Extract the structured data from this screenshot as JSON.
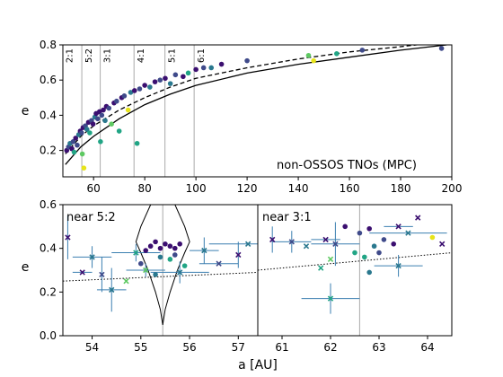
{
  "chart_data": [
    {
      "type": "scatter",
      "title": "",
      "annotation": "non-OSSOS TNOs (MPC)",
      "xlabel": "",
      "ylabel": "e",
      "xlim": [
        48,
        200
      ],
      "ylim": [
        0.05,
        0.8
      ],
      "xticks": [
        "60",
        "80",
        "100",
        "120",
        "140",
        "160",
        "180",
        "200"
      ],
      "yticks": [
        "0.2",
        "0.4",
        "0.6",
        "0.8"
      ],
      "grid": false,
      "resonances": [
        {
          "label": "2:1",
          "a": 47.8
        },
        {
          "label": "5:2",
          "a": 55.4
        },
        {
          "label": "3:1",
          "a": 62.6
        },
        {
          "label": "4:1",
          "a": 75.8
        },
        {
          "label": "5:1",
          "a": 87.9
        },
        {
          "label": "6:1",
          "a": 99.3
        }
      ],
      "curves": [
        {
          "style": "solid",
          "a": [
            49,
            55,
            60,
            70,
            80,
            90,
            100,
            120,
            140,
            160,
            180,
            198
          ],
          "e": [
            0.12,
            0.22,
            0.28,
            0.38,
            0.46,
            0.52,
            0.57,
            0.64,
            0.69,
            0.73,
            0.77,
            0.8
          ]
        },
        {
          "style": "dashed",
          "a": [
            49,
            55,
            60,
            70,
            80,
            90,
            100,
            120,
            140,
            160,
            180,
            198
          ],
          "e": [
            0.18,
            0.28,
            0.34,
            0.43,
            0.5,
            0.56,
            0.61,
            0.67,
            0.72,
            0.76,
            0.79,
            0.82
          ]
        }
      ],
      "points": [
        {
          "a": 49.5,
          "e": 0.2,
          "c": "#3b0f70"
        },
        {
          "a": 50.2,
          "e": 0.22,
          "c": "#3f4a8a"
        },
        {
          "a": 50.8,
          "e": 0.24,
          "c": "#2a788e"
        },
        {
          "a": 51.5,
          "e": 0.21,
          "c": "#3b0f70"
        },
        {
          "a": 52.0,
          "e": 0.25,
          "c": "#3f4a8a"
        },
        {
          "a": 52.4,
          "e": 0.19,
          "c": "#21a585"
        },
        {
          "a": 53.0,
          "e": 0.27,
          "c": "#3b0f70"
        },
        {
          "a": 53.6,
          "e": 0.23,
          "c": "#3f4a8a"
        },
        {
          "a": 54.2,
          "e": 0.29,
          "c": "#2a788e"
        },
        {
          "a": 54.8,
          "e": 0.31,
          "c": "#3b0f70"
        },
        {
          "a": 55.3,
          "e": 0.3,
          "c": "#3f4a8a"
        },
        {
          "a": 55.6,
          "e": 0.18,
          "c": "#5ec962"
        },
        {
          "a": 55.9,
          "e": 0.33,
          "c": "#3b0f70"
        },
        {
          "a": 56.2,
          "e": 0.1,
          "c": "#e7e419"
        },
        {
          "a": 56.8,
          "e": 0.34,
          "c": "#3f4a8a"
        },
        {
          "a": 57.4,
          "e": 0.32,
          "c": "#2a788e"
        },
        {
          "a": 58.0,
          "e": 0.36,
          "c": "#3b0f70"
        },
        {
          "a": 58.5,
          "e": 0.3,
          "c": "#21a585"
        },
        {
          "a": 59.2,
          "e": 0.37,
          "c": "#3f4a8a"
        },
        {
          "a": 59.8,
          "e": 0.35,
          "c": "#3b0f70"
        },
        {
          "a": 60.5,
          "e": 0.39,
          "c": "#2a788e"
        },
        {
          "a": 61.0,
          "e": 0.41,
          "c": "#3b0f70"
        },
        {
          "a": 61.6,
          "e": 0.38,
          "c": "#3f4a8a"
        },
        {
          "a": 62.3,
          "e": 0.42,
          "c": "#3b0f70"
        },
        {
          "a": 62.7,
          "e": 0.25,
          "c": "#21a585"
        },
        {
          "a": 63.2,
          "e": 0.4,
          "c": "#3f4a8a"
        },
        {
          "a": 63.8,
          "e": 0.43,
          "c": "#3b0f70"
        },
        {
          "a": 64.5,
          "e": 0.37,
          "c": "#2a788e"
        },
        {
          "a": 65.0,
          "e": 0.45,
          "c": "#3b0f70"
        },
        {
          "a": 66.0,
          "e": 0.44,
          "c": "#3f4a8a"
        },
        {
          "a": 67.0,
          "e": 0.35,
          "c": "#5ec962"
        },
        {
          "a": 68.0,
          "e": 0.47,
          "c": "#3b0f70"
        },
        {
          "a": 69.0,
          "e": 0.48,
          "c": "#3f4a8a"
        },
        {
          "a": 70.0,
          "e": 0.31,
          "c": "#21a585"
        },
        {
          "a": 71.0,
          "e": 0.5,
          "c": "#3b0f70"
        },
        {
          "a": 72.0,
          "e": 0.51,
          "c": "#3f4a8a"
        },
        {
          "a": 73.5,
          "e": 0.43,
          "c": "#e7e419"
        },
        {
          "a": 74.5,
          "e": 0.53,
          "c": "#2a788e"
        },
        {
          "a": 76.0,
          "e": 0.54,
          "c": "#3b0f70"
        },
        {
          "a": 77.0,
          "e": 0.24,
          "c": "#21a585"
        },
        {
          "a": 78.0,
          "e": 0.55,
          "c": "#3f4a8a"
        },
        {
          "a": 80.0,
          "e": 0.57,
          "c": "#3b0f70"
        },
        {
          "a": 82.0,
          "e": 0.56,
          "c": "#2a788e"
        },
        {
          "a": 84.0,
          "e": 0.59,
          "c": "#3b0f70"
        },
        {
          "a": 86.0,
          "e": 0.6,
          "c": "#3f4a8a"
        },
        {
          "a": 88.0,
          "e": 0.61,
          "c": "#3b0f70"
        },
        {
          "a": 90.0,
          "e": 0.58,
          "c": "#2a788e"
        },
        {
          "a": 92.0,
          "e": 0.63,
          "c": "#3f4a8a"
        },
        {
          "a": 95.0,
          "e": 0.62,
          "c": "#3b0f70"
        },
        {
          "a": 97.0,
          "e": 0.64,
          "c": "#21a585"
        },
        {
          "a": 100.0,
          "e": 0.66,
          "c": "#3b0f70"
        },
        {
          "a": 103.0,
          "e": 0.67,
          "c": "#3f4a8a"
        },
        {
          "a": 106.0,
          "e": 0.67,
          "c": "#2a788e"
        },
        {
          "a": 110.0,
          "e": 0.69,
          "c": "#3b0f70"
        },
        {
          "a": 120.0,
          "e": 0.71,
          "c": "#3f4a8a"
        },
        {
          "a": 144.0,
          "e": 0.74,
          "c": "#5ec962"
        },
        {
          "a": 146.0,
          "e": 0.71,
          "c": "#e7e419"
        },
        {
          "a": 155.0,
          "e": 0.75,
          "c": "#21a585"
        },
        {
          "a": 165.0,
          "e": 0.77,
          "c": "#3f4a8a"
        },
        {
          "a": 196.0,
          "e": 0.78,
          "c": "#3f4a8a"
        }
      ]
    },
    {
      "type": "scatter",
      "title": "",
      "annotation": "near 5:2",
      "xlabel": "",
      "ylabel": "e",
      "xlim": [
        53.4,
        57.4
      ],
      "ylim": [
        0.0,
        0.6
      ],
      "xticks": [
        "54",
        "55",
        "56",
        "57"
      ],
      "yticks": [
        "0.0",
        "0.2",
        "0.4",
        "0.6"
      ],
      "resonance_a": 55.45,
      "trend": {
        "a": [
          53.4,
          57.4
        ],
        "e": [
          0.25,
          0.29
        ]
      },
      "points": [
        {
          "a": 55.3,
          "e": 0.43,
          "c": "#3b0f70",
          "m": "o"
        },
        {
          "a": 55.5,
          "e": 0.42,
          "c": "#3b0f70",
          "m": "o"
        },
        {
          "a": 55.4,
          "e": 0.4,
          "c": "#3b0f70",
          "m": "o"
        },
        {
          "a": 55.6,
          "e": 0.41,
          "c": "#3b0f70",
          "m": "o"
        },
        {
          "a": 55.2,
          "e": 0.41,
          "c": "#3b0f70",
          "m": "o"
        },
        {
          "a": 55.7,
          "e": 0.4,
          "c": "#3b0f70",
          "m": "o"
        },
        {
          "a": 55.1,
          "e": 0.39,
          "c": "#3b0f70",
          "m": "o"
        },
        {
          "a": 55.8,
          "e": 0.42,
          "c": "#3b0f70",
          "m": "o"
        },
        {
          "a": 55.0,
          "e": 0.33,
          "c": "#3f4a8a",
          "m": "o"
        },
        {
          "a": 55.4,
          "e": 0.36,
          "c": "#2a788e",
          "m": "o"
        },
        {
          "a": 55.6,
          "e": 0.35,
          "c": "#21a585",
          "m": "o"
        },
        {
          "a": 55.9,
          "e": 0.32,
          "c": "#21a585",
          "m": "o"
        },
        {
          "a": 55.3,
          "e": 0.28,
          "c": "#2a788e",
          "m": "o"
        },
        {
          "a": 55.7,
          "e": 0.37,
          "c": "#3f4a8a",
          "m": "o"
        },
        {
          "a": 53.5,
          "e": 0.45,
          "c": "#3b0f70",
          "m": "x",
          "ex": 0.0,
          "ey": 0.1
        },
        {
          "a": 53.8,
          "e": 0.29,
          "c": "#3b0f70",
          "m": "x",
          "ex": 0.2,
          "ey": 0.0
        },
        {
          "a": 54.0,
          "e": 0.36,
          "c": "#2a788e",
          "m": "x",
          "ex": 0.4,
          "ey": 0.05
        },
        {
          "a": 54.2,
          "e": 0.28,
          "c": "#3f4a8a",
          "m": "x",
          "ex": 0.0,
          "ey": 0.08
        },
        {
          "a": 54.4,
          "e": 0.21,
          "c": "#2a788e",
          "m": "x",
          "ex": 0.3,
          "ey": 0.1
        },
        {
          "a": 54.7,
          "e": 0.25,
          "c": "#5ec962",
          "m": "x",
          "ex": 0.0,
          "ey": 0.0
        },
        {
          "a": 54.9,
          "e": 0.38,
          "c": "#21a585",
          "m": "x",
          "ex": 0.5,
          "ey": 0.04
        },
        {
          "a": 55.1,
          "e": 0.3,
          "c": "#5ec962",
          "m": "x",
          "ex": 0.4,
          "ey": 0.03
        },
        {
          "a": 55.8,
          "e": 0.29,
          "c": "#2a788e",
          "m": "x",
          "ex": 0.6,
          "ey": 0.05
        },
        {
          "a": 56.3,
          "e": 0.39,
          "c": "#2a788e",
          "m": "x",
          "ex": 0.3,
          "ey": 0.06
        },
        {
          "a": 56.6,
          "e": 0.33,
          "c": "#3f4a8a",
          "m": "x",
          "ex": 0.4,
          "ey": 0.0
        },
        {
          "a": 57.0,
          "e": 0.37,
          "c": "#3b0f70",
          "m": "x",
          "ex": 0.0,
          "ey": 0.06
        },
        {
          "a": 57.2,
          "e": 0.42,
          "c": "#2a788e",
          "m": "x",
          "ex": 0.8,
          "ey": 0.0
        }
      ]
    },
    {
      "type": "scatter",
      "title": "",
      "annotation": "near 3:1",
      "xlabel": "",
      "ylabel": "",
      "xlim": [
        60.5,
        64.5
      ],
      "ylim": [
        0.0,
        0.6
      ],
      "xticks": [
        "61",
        "62",
        "63",
        "64"
      ],
      "yticks": [],
      "resonance_a": 62.6,
      "trend": {
        "a": [
          60.5,
          64.5
        ],
        "e": [
          0.3,
          0.38
        ]
      },
      "points": [
        {
          "a": 62.3,
          "e": 0.5,
          "c": "#3b0f70",
          "m": "o"
        },
        {
          "a": 62.6,
          "e": 0.47,
          "c": "#3f4a8a",
          "m": "o"
        },
        {
          "a": 62.8,
          "e": 0.49,
          "c": "#3b0f70",
          "m": "o"
        },
        {
          "a": 62.9,
          "e": 0.41,
          "c": "#2a788e",
          "m": "o"
        },
        {
          "a": 63.1,
          "e": 0.44,
          "c": "#3f4a8a",
          "m": "o"
        },
        {
          "a": 63.3,
          "e": 0.42,
          "c": "#3b0f70",
          "m": "o"
        },
        {
          "a": 62.5,
          "e": 0.38,
          "c": "#21a585",
          "m": "o"
        },
        {
          "a": 62.7,
          "e": 0.36,
          "c": "#21a585",
          "m": "o"
        },
        {
          "a": 63.0,
          "e": 0.38,
          "c": "#3f4a8a",
          "m": "o"
        },
        {
          "a": 62.8,
          "e": 0.29,
          "c": "#2a788e",
          "m": "o"
        },
        {
          "a": 64.1,
          "e": 0.45,
          "c": "#e7e419",
          "m": "o"
        },
        {
          "a": 60.8,
          "e": 0.44,
          "c": "#3b0f70",
          "m": "x",
          "ex": 0.0,
          "ey": 0.06
        },
        {
          "a": 61.2,
          "e": 0.43,
          "c": "#3f4a8a",
          "m": "x",
          "ex": 0.4,
          "ey": 0.05
        },
        {
          "a": 61.5,
          "e": 0.41,
          "c": "#2a788e",
          "m": "x",
          "ex": 0.0,
          "ey": 0.0
        },
        {
          "a": 61.9,
          "e": 0.44,
          "c": "#3b0f70",
          "m": "x",
          "ex": 0.3,
          "ey": 0.0
        },
        {
          "a": 62.1,
          "e": 0.42,
          "c": "#3f4a8a",
          "m": "x",
          "ex": 0.5,
          "ey": 0.1
        },
        {
          "a": 62.0,
          "e": 0.35,
          "c": "#5ec962",
          "m": "x",
          "ex": 0.0,
          "ey": 0.0
        },
        {
          "a": 61.8,
          "e": 0.31,
          "c": "#21a585",
          "m": "x",
          "ex": 0.0,
          "ey": 0.0
        },
        {
          "a": 62.0,
          "e": 0.17,
          "c": "#21a585",
          "m": "x",
          "ex": 0.6,
          "ey": 0.07
        },
        {
          "a": 63.4,
          "e": 0.5,
          "c": "#3b0f70",
          "m": "x",
          "ex": 0.3,
          "ey": 0.0
        },
        {
          "a": 63.6,
          "e": 0.47,
          "c": "#2a788e",
          "m": "x",
          "ex": 0.8,
          "ey": 0.0
        },
        {
          "a": 63.8,
          "e": 0.54,
          "c": "#3b0f70",
          "m": "x",
          "ex": 0.0,
          "ey": 0.0
        },
        {
          "a": 63.4,
          "e": 0.32,
          "c": "#2a788e",
          "m": "x",
          "ex": 0.5,
          "ey": 0.05
        },
        {
          "a": 64.3,
          "e": 0.42,
          "c": "#3b0f70",
          "m": "x",
          "ex": 0.0,
          "ey": 0.0
        }
      ]
    }
  ],
  "shared_xlabel": "a [AU]"
}
